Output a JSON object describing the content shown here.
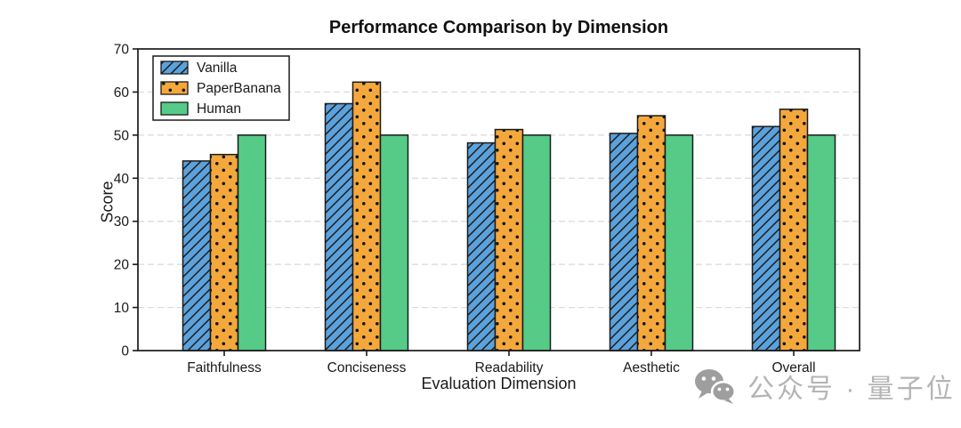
{
  "page": {
    "background": "#ffffff"
  },
  "chart_data": {
    "type": "bar",
    "title": "Performance Comparison by Dimension",
    "xlabel": "Evaluation Dimension",
    "ylabel": "Score",
    "categories": [
      "Faithfulness",
      "Conciseness",
      "Readability",
      "Aesthetic",
      "Overall"
    ],
    "series": [
      {
        "name": "Vanilla",
        "color": "#5BA1DB",
        "hatch": "diagonal",
        "values": [
          44.0,
          57.3,
          48.2,
          50.4,
          52.0
        ]
      },
      {
        "name": "PaperBanana",
        "color": "#F4A83C",
        "hatch": "dots",
        "values": [
          45.5,
          62.3,
          51.3,
          54.5,
          56.0
        ]
      },
      {
        "name": "Human",
        "color": "#55CB87",
        "hatch": "none",
        "values": [
          50.0,
          50.0,
          50.0,
          50.0,
          50.0
        ]
      }
    ],
    "ylim": [
      0,
      70
    ],
    "ytick_step": 10,
    "yticks": [
      "0",
      "10",
      "20",
      "30",
      "40",
      "50",
      "60",
      "70"
    ],
    "grid": "horizontal-dashed",
    "legend_position": "upper-left",
    "edge_color": "#1a1a1a",
    "grid_color": "#d9d9d9"
  },
  "watermark": {
    "icon": "wechat-icon",
    "text": "公众号 · 量子位",
    "color": "#b4b4b4"
  }
}
